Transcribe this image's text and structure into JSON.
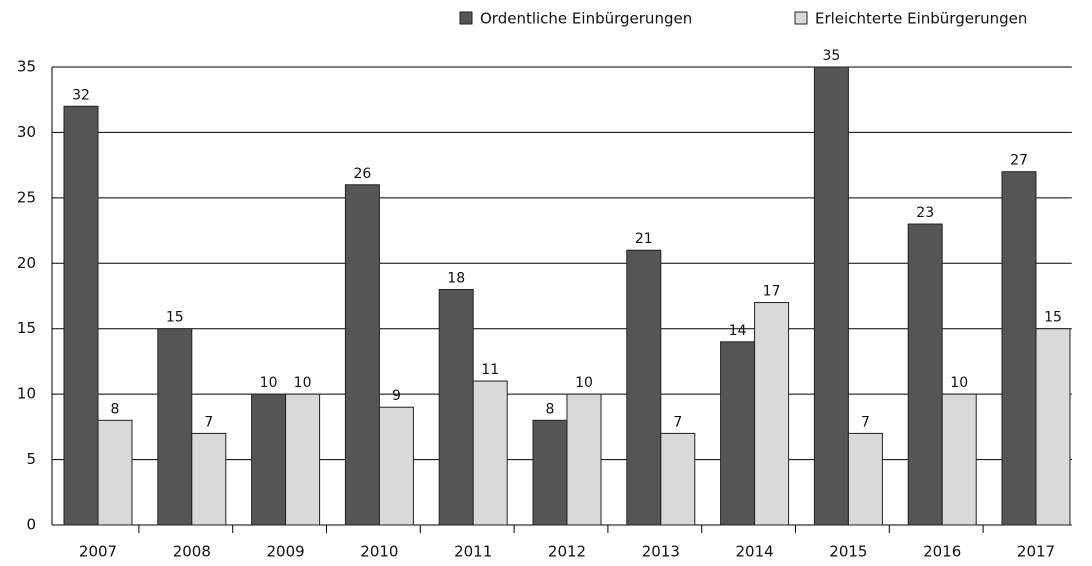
{
  "chart_data": {
    "type": "bar",
    "categories": [
      "2007",
      "2008",
      "2009",
      "2010",
      "2011",
      "2012",
      "2013",
      "2014",
      "2015",
      "2016",
      "2017"
    ],
    "series": [
      {
        "name": "Ordentliche Einbürgerungen",
        "color": "#555555",
        "values": [
          32,
          15,
          10,
          26,
          18,
          8,
          21,
          14,
          35,
          23,
          27
        ]
      },
      {
        "name": "Erleichterte Einbürgerungen",
        "color": "#d9d9d9",
        "values": [
          8,
          7,
          10,
          9,
          11,
          10,
          7,
          17,
          7,
          10,
          15
        ]
      }
    ],
    "ylim": [
      0,
      35
    ],
    "yticks": [
      0,
      5,
      10,
      15,
      20,
      25,
      30,
      35
    ],
    "grid": true,
    "legend": "top-right"
  }
}
